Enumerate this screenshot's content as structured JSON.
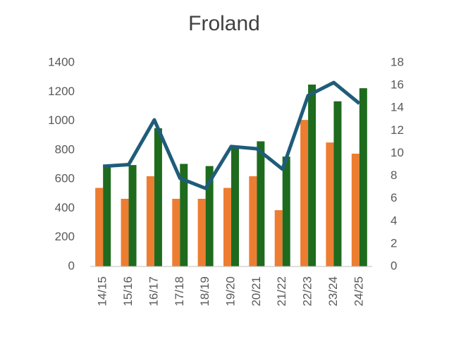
{
  "chart_data": {
    "type": "bar",
    "title": "Froland",
    "categories": [
      "14/15",
      "15/16",
      "16/17",
      "17/18",
      "18/19",
      "19/20",
      "20/21",
      "21/22",
      "22/23",
      "23/24",
      "24/25"
    ],
    "series": [
      {
        "color": "#ED7D31",
        "values": [
          540,
          465,
          620,
          465,
          465,
          540,
          620,
          387,
          1007,
          852,
          775
        ]
      },
      {
        "color": "#1E6B1E",
        "values": [
          690,
          697,
          950,
          705,
          690,
          815,
          860,
          755,
          1250,
          1135,
          1225
        ]
      },
      {
        "type": "line",
        "axis": "y2",
        "color": "#1F5C7A",
        "values": [
          8.85,
          9.0,
          12.95,
          7.8,
          6.9,
          10.6,
          10.4,
          8.6,
          15.1,
          16.25,
          14.4
        ]
      }
    ],
    "ylim": [
      0,
      1400
    ],
    "yticks": [
      0,
      200,
      400,
      600,
      800,
      1000,
      1200,
      1400
    ],
    "y2lim": [
      0,
      18
    ],
    "y2ticks": [
      0,
      2,
      4,
      6,
      8,
      10,
      12,
      14,
      16,
      18
    ],
    "grid": false
  }
}
